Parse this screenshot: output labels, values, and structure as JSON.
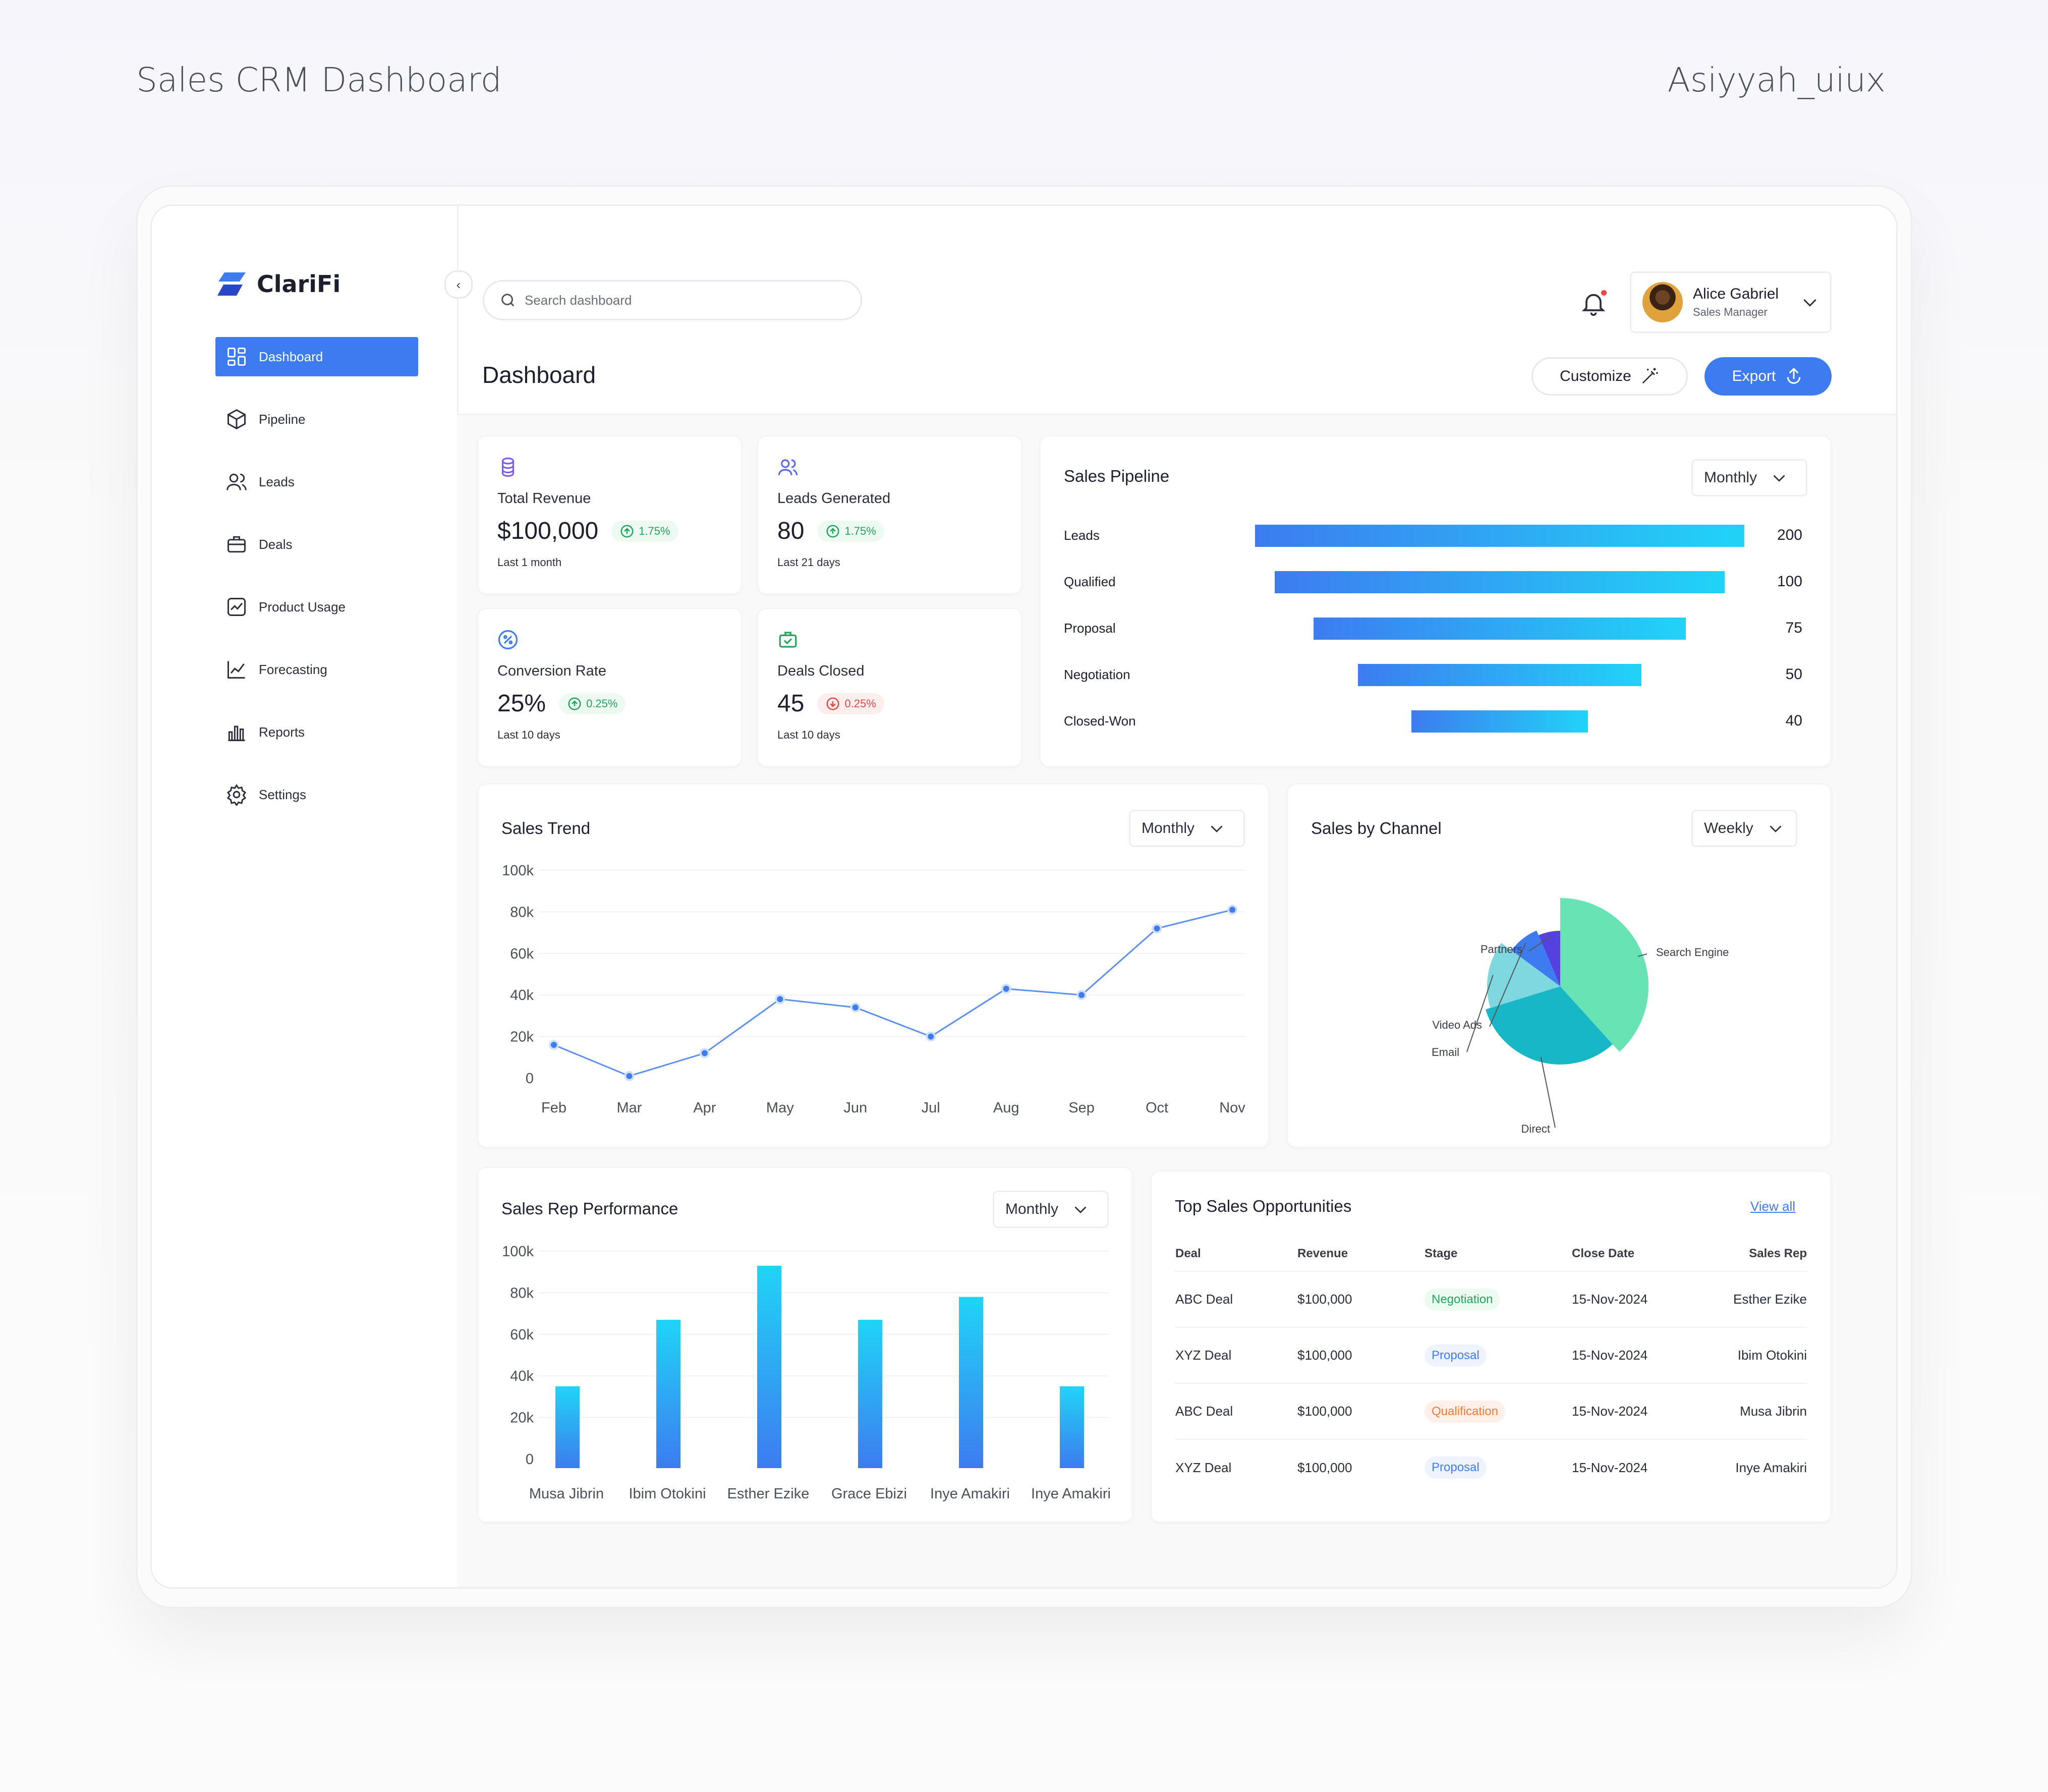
{
  "presentation": {
    "title": "Sales CRM Dashboard",
    "author": "Asiyyah_uiux"
  },
  "app": {
    "name": "ClariFi"
  },
  "sidebar": {
    "items": [
      {
        "label": "Dashboard",
        "icon": "dashboard-icon",
        "active": true
      },
      {
        "label": "Pipeline",
        "icon": "cube-icon"
      },
      {
        "label": "Leads",
        "icon": "users-icon"
      },
      {
        "label": "Deals",
        "icon": "briefcase-icon"
      },
      {
        "label": "Product Usage",
        "icon": "activity-icon"
      },
      {
        "label": "Forecasting",
        "icon": "line-chart-icon"
      },
      {
        "label": "Reports",
        "icon": "bar-chart-icon"
      },
      {
        "label": "Settings",
        "icon": "gear-icon"
      }
    ]
  },
  "header": {
    "search_placeholder": "Search dashboard",
    "user": {
      "name": "Alice Gabriel",
      "role": "Sales Manager"
    },
    "page_title": "Dashboard",
    "customize_label": "Customize",
    "export_label": "Export"
  },
  "stats": [
    {
      "label": "Total Revenue",
      "value": "$100,000",
      "change": "1.75%",
      "direction": "up",
      "sub": "Last 1 month",
      "icon": "coins-icon",
      "color": "#7c5cf0"
    },
    {
      "label": "Leads Generated",
      "value": "80",
      "change": "1.75%",
      "direction": "up",
      "sub": "Last 21 days",
      "icon": "users-icon",
      "color": "#5a67f0"
    },
    {
      "label": "Conversion Rate",
      "value": "25%",
      "change": "0.25%",
      "direction": "up",
      "sub": "Last 10 days",
      "icon": "percent-icon",
      "color": "#3d7cf0"
    },
    {
      "label": "Deals Closed",
      "value": "45",
      "change": "0.25%",
      "direction": "down",
      "sub": "Last 10 days",
      "icon": "briefcase-check-icon",
      "color": "#22a55a"
    }
  ],
  "sales_pipeline": {
    "title": "Sales Pipeline",
    "filter": "Monthly",
    "stages": [
      {
        "label": "Leads",
        "value": 200
      },
      {
        "label": "Qualified",
        "value": 100
      },
      {
        "label": "Proposal",
        "value": 75
      },
      {
        "label": "Negotiation",
        "value": 50
      },
      {
        "label": "Closed-Won",
        "value": 40
      }
    ]
  },
  "sales_trend": {
    "title": "Sales Trend",
    "filter": "Monthly"
  },
  "sales_by_channel": {
    "title": "Sales by Channel",
    "filter": "Weekly"
  },
  "sales_rep_performance": {
    "title": "Sales Rep Performance",
    "filter": "Monthly"
  },
  "chart_data": [
    {
      "type": "line",
      "categories": [
        "Feb",
        "Mar",
        "Apr",
        "May",
        "Jun",
        "Jul",
        "Aug",
        "Sep",
        "Oct",
        "Nov"
      ],
      "values": [
        16000,
        1000,
        12000,
        38000,
        34000,
        20000,
        43000,
        40000,
        72000,
        81000
      ],
      "yticks": [
        "0",
        "20k",
        "40k",
        "60k",
        "80k",
        "100k"
      ],
      "ylim": [
        0,
        100000
      ],
      "color": "#5b8ff0"
    },
    {
      "type": "pie",
      "slices": [
        {
          "label": "Search Engine",
          "value": 36,
          "color": "#68e3b4"
        },
        {
          "label": "Direct",
          "value": 30,
          "color": "#17b7c7"
        },
        {
          "label": "Email",
          "value": 14,
          "color": "#7fd8e0"
        },
        {
          "label": "Video Ads",
          "value": 8,
          "color": "#3d7cf0"
        },
        {
          "label": "Partners",
          "value": 6,
          "color": "#5540e0"
        }
      ]
    },
    {
      "type": "bar",
      "categories": [
        "Musa Jibrin",
        "Ibim Otokini",
        "Esther Ezike",
        "Grace Ebizi",
        "Inye Amakiri",
        "Inye Amakiri"
      ],
      "values": [
        35000,
        67000,
        93000,
        67000,
        78000,
        35000
      ],
      "yticks": [
        "0",
        "20k",
        "40k",
        "60k",
        "80k",
        "100k"
      ],
      "ylim": [
        0,
        100000
      ]
    }
  ],
  "opportunities": {
    "title": "Top Sales Opportunities",
    "view_all": "View all",
    "columns": [
      "Deal",
      "Revenue",
      "Stage",
      "Close Date",
      "Sales Rep"
    ],
    "rows": [
      {
        "deal": "ABC Deal",
        "revenue": "$100,000",
        "stage": "Negotiation",
        "date": "15-Nov-2024",
        "rep": "Esther Ezike"
      },
      {
        "deal": "XYZ Deal",
        "revenue": "$100,000",
        "stage": "Proposal",
        "date": "15-Nov-2024",
        "rep": "Ibim Otokini"
      },
      {
        "deal": "ABC Deal",
        "revenue": "$100,000",
        "stage": "Qualification",
        "date": "15-Nov-2024",
        "rep": "Musa Jibrin"
      },
      {
        "deal": "XYZ Deal",
        "revenue": "$100,000",
        "stage": "Proposal",
        "date": "15-Nov-2024",
        "rep": "Inye Amakiri"
      }
    ]
  }
}
